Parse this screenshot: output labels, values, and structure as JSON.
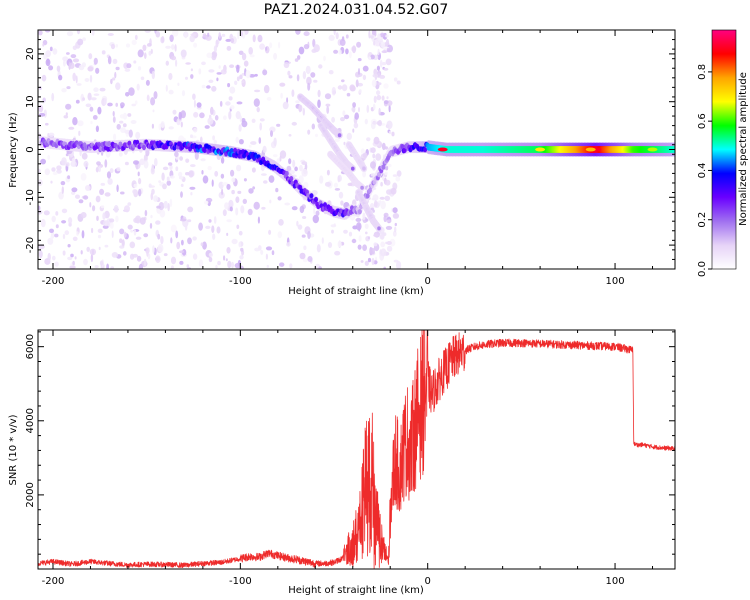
{
  "figure": {
    "title": "PAZ1.2024.031.04.52.G07"
  },
  "chart_data": [
    {
      "type": "heatmap",
      "title": "PAZ1.2024.031.04.52.G07",
      "xlabel": "Height of straight line (km)",
      "ylabel": "Frequency (Hz)",
      "xlim": [
        -208,
        132
      ],
      "ylim": [
        -25,
        25
      ],
      "x_ticks": [
        "-200",
        "-100",
        "0",
        "100"
      ],
      "x_tick_values": [
        -200,
        -100,
        0,
        100
      ],
      "y_ticks": [
        "-20",
        "-10",
        "0",
        "10",
        "20"
      ],
      "y_tick_values": [
        -20,
        -10,
        0,
        10,
        20
      ],
      "colorbar": {
        "label": "Normalized spectral amplitude",
        "range": [
          0,
          0.97
        ],
        "ticks": [
          "0.0",
          "0.2",
          "0.4",
          "0.6",
          "0.8"
        ],
        "tick_values": [
          0,
          0.2,
          0.4,
          0.6,
          0.8
        ],
        "colormap": [
          "#ffffff",
          "#e6d3f7",
          "#a070f0",
          "#6a00ff",
          "#0000ff",
          "#00ffff",
          "#00ff00",
          "#ffff00",
          "#ffa500",
          "#ff0000",
          "#ff0080"
        ]
      },
      "main_band": {
        "x": [
          -205,
          -180,
          -150,
          -125,
          -105,
          -92,
          -82,
          -74,
          -66,
          -58,
          -50,
          -44,
          -40,
          -37,
          -20,
          -10,
          0,
          10,
          30,
          60,
          90,
          110,
          132
        ],
        "y": [
          1.5,
          0.5,
          1.0,
          0.5,
          -0.5,
          -1.5,
          -3.5,
          -6.0,
          -9.0,
          -11.5,
          -13.0,
          -13.5,
          -12.5,
          -13.0,
          -0.5,
          0.5,
          0.5,
          0.0,
          0.0,
          0.0,
          0.0,
          0.0,
          0.0
        ],
        "amplitude": [
          0.22,
          0.25,
          0.28,
          0.4,
          0.4,
          0.35,
          0.35,
          0.3,
          0.3,
          0.3,
          0.3,
          0.3,
          0.2,
          0.15,
          0.2,
          0.3,
          0.45,
          0.5,
          0.5,
          0.55,
          0.9,
          0.6,
          0.5
        ]
      },
      "branches": [
        {
          "x": [
            -68,
            -62,
            -55,
            -50,
            -47
          ],
          "y": [
            11.0,
            9.0,
            6.0,
            4.0,
            3.0
          ],
          "amplitude": 0.2
        },
        {
          "x": [
            -57,
            -52,
            -47,
            -43,
            -40
          ],
          "y": [
            5.0,
            2.0,
            -1.0,
            -3.0,
            -4.0
          ],
          "amplitude": 0.18
        },
        {
          "x": [
            -52,
            -47,
            -42,
            -38,
            -35
          ],
          "y": [
            -1.0,
            -3.0,
            -5.0,
            -7.0,
            -8.0
          ],
          "amplitude": 0.15
        },
        {
          "x": [
            -42,
            -38,
            -34
          ],
          "y": [
            1.0,
            -1.5,
            -4.0
          ],
          "amplitude": 0.16
        },
        {
          "x": [
            -37,
            -33,
            -29,
            -26
          ],
          "y": [
            -9.0,
            -12.0,
            -15.0,
            -16.5
          ],
          "amplitude": 0.18
        }
      ]
    },
    {
      "type": "line",
      "xlabel": "Height of straight line (km)",
      "ylabel": "SNR (10 * v/v)",
      "xlim": [
        -208,
        132
      ],
      "ylim": [
        0,
        6450
      ],
      "x_ticks": [
        "-200",
        "-100",
        "0",
        "100"
      ],
      "x_tick_values": [
        -200,
        -100,
        0,
        100
      ],
      "y_ticks": [
        "2000",
        "4000",
        "6000"
      ],
      "y_tick_values": [
        2000,
        4000,
        6000
      ],
      "color": "#ee2b2b",
      "x": [
        -208,
        -200,
        -190,
        -180,
        -170,
        -160,
        -150,
        -140,
        -130,
        -120,
        -110,
        -100,
        -95,
        -90,
        -85,
        -80,
        -75,
        -70,
        -65,
        -60,
        -55,
        -50,
        -45,
        -40,
        -37,
        -35,
        -33,
        -31,
        -29,
        -27,
        -25,
        -23,
        -21,
        -19,
        -17,
        -15,
        -13,
        -11,
        -9,
        -7,
        -5,
        -3,
        -1,
        0,
        2,
        4,
        6,
        8,
        10,
        12,
        15,
        20,
        25,
        30,
        35,
        40,
        50,
        60,
        70,
        80,
        90,
        100,
        105,
        109.5,
        110,
        112,
        115,
        120,
        125,
        132
      ],
      "y": [
        150,
        200,
        130,
        200,
        150,
        110,
        130,
        120,
        100,
        150,
        180,
        280,
        340,
        320,
        430,
        360,
        300,
        260,
        200,
        150,
        150,
        180,
        300,
        700,
        1000,
        1500,
        2200,
        2500,
        2200,
        1500,
        800,
        400,
        250,
        2300,
        3000,
        2600,
        3200,
        3500,
        3200,
        3800,
        4200,
        4500,
        5000,
        5100,
        4700,
        4900,
        5100,
        5300,
        5400,
        5600,
        5750,
        5900,
        6000,
        6050,
        6080,
        6100,
        6100,
        6080,
        6060,
        6040,
        6020,
        6000,
        5950,
        5900,
        3380,
        3350,
        3350,
        3300,
        3270,
        3250
      ]
    }
  ]
}
